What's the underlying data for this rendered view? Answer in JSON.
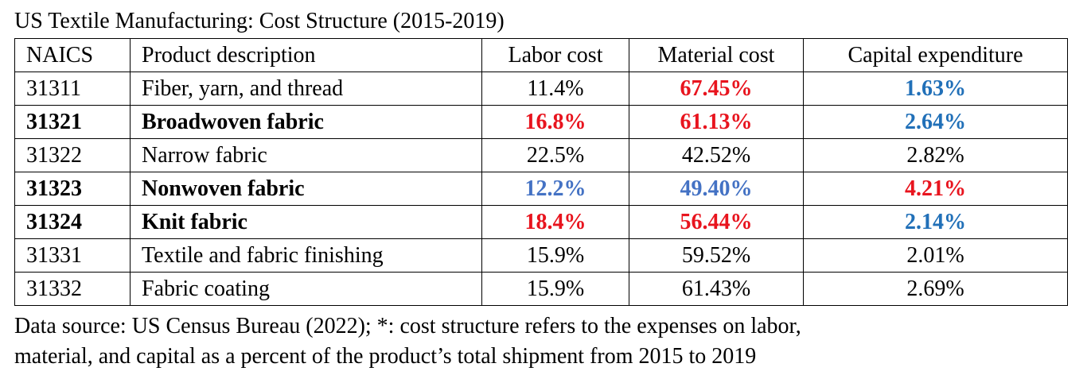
{
  "header": {
    "title": "US Textile Manufacturing: Cost Structure (2015-2019)"
  },
  "table": {
    "columns": [
      "NAICS",
      "Product description",
      "Labor cost",
      "Material cost",
      "Capital expenditure"
    ],
    "rows": [
      [
        "31311",
        "Fiber, yarn, and thread",
        "11.4%",
        "67.45%",
        "1.63%"
      ],
      [
        "31321",
        "Broadwoven fabric",
        "16.8%",
        "61.13%",
        "2.64%"
      ],
      [
        "31322",
        "Narrow fabric",
        "22.5%",
        "42.52%",
        "2.82%"
      ],
      [
        "31323",
        "Nonwoven fabric",
        "12.2%",
        "49.40%",
        "4.21%"
      ],
      [
        "31324",
        "Knit fabric",
        "18.4%",
        "56.44%",
        "2.14%"
      ],
      [
        "31331",
        "Textile and fabric finishing",
        "15.9%",
        "59.52%",
        "2.01%"
      ],
      [
        "31332",
        "Fabric coating",
        "15.9%",
        "61.43%",
        "2.69%"
      ]
    ]
  },
  "footnote": {
    "lines": [
      "Data source: US Census Bureau (2022); *: cost structure refers to the expenses on labor,",
      "material, and capital as a percent of the product’s total shipment from 2015 to 2019"
    ]
  }
}
